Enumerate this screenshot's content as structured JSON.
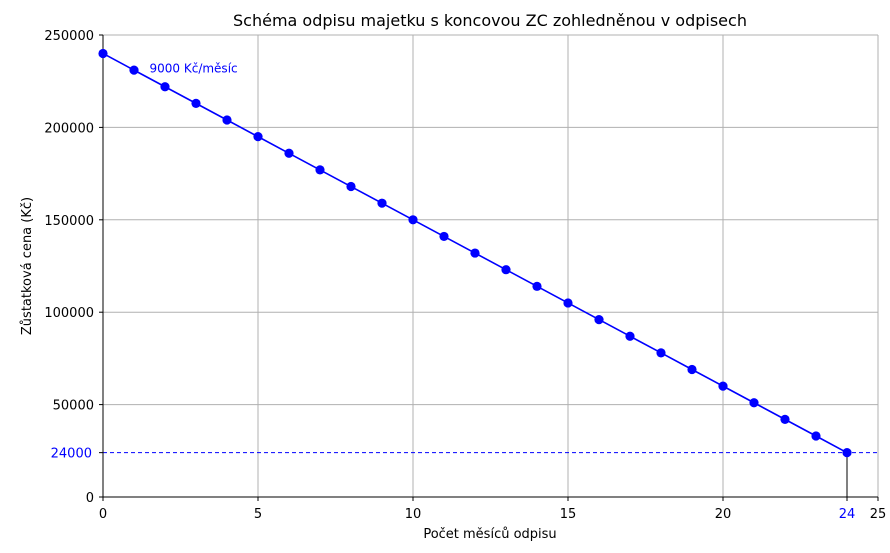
{
  "chart_data": {
    "type": "line",
    "title": "Schéma odpisu majetku s koncovou ZC zohledněnou v odpisech",
    "xlabel": "Počet měsíců odpisu",
    "ylabel": "Zůstatková cena (Kč)",
    "xlim": [
      0,
      25
    ],
    "ylim": [
      0,
      250000
    ],
    "x_ticks": [
      0,
      5,
      10,
      15,
      20,
      25
    ],
    "y_ticks": [
      0,
      50000,
      100000,
      150000,
      200000,
      250000
    ],
    "grid": true,
    "series": [
      {
        "color": "#0000ff",
        "x": [
          0,
          1,
          2,
          3,
          4,
          5,
          6,
          7,
          8,
          9,
          10,
          11,
          12,
          13,
          14,
          15,
          16,
          17,
          18,
          19,
          20,
          21,
          22,
          23,
          24
        ],
        "values": [
          240000,
          231000,
          222000,
          213000,
          204000,
          195000,
          186000,
          177000,
          168000,
          159000,
          150000,
          141000,
          132000,
          123000,
          114000,
          105000,
          96000,
          87000,
          78000,
          69000,
          60000,
          51000,
          42000,
          33000,
          24000
        ]
      }
    ],
    "hline": {
      "y": 24000,
      "label": "24000",
      "color": "#0000ff",
      "style": "dashed"
    },
    "vline": {
      "x": 24,
      "label": "24",
      "color": "#000000"
    },
    "annotation": {
      "text": "9000 Kč/měsíc",
      "x": 1.5,
      "y": 232000,
      "color": "#0000ff"
    }
  }
}
